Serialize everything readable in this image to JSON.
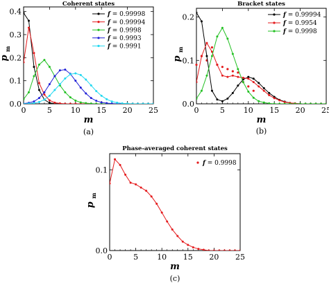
{
  "chart_data": [
    {
      "type": "line",
      "title": "Coherent states",
      "caption": "(a)",
      "xlabel": "m",
      "ylabel": "p",
      "ylabel_sub": "m",
      "xlim": [
        0,
        25
      ],
      "ylim": [
        0,
        0.42
      ],
      "xticks": [
        0,
        5,
        10,
        15,
        20,
        25
      ],
      "yticks": [
        0.0,
        0.1,
        0.2,
        0.3,
        0.4
      ],
      "legend_position": "top-right",
      "series": [
        {
          "name": "0.99998",
          "color": "#000000",
          "x": [
            0,
            1,
            2,
            3,
            4,
            5,
            6,
            7,
            8,
            9,
            10,
            11,
            12,
            13,
            14,
            15,
            16,
            17,
            18,
            19,
            20,
            21,
            22,
            23,
            24,
            25
          ],
          "values": [
            0.394,
            0.36,
            0.16,
            0.06,
            0.018,
            0.004,
            0.001,
            0,
            0,
            0,
            0,
            0,
            0,
            0,
            0,
            0,
            0,
            0,
            0,
            0,
            0,
            0,
            0,
            0,
            0,
            0
          ]
        },
        {
          "name": "0.99994",
          "color": "#e41a1c",
          "x": [
            0,
            1,
            2,
            3,
            4,
            5,
            6,
            7,
            8,
            9,
            10,
            11,
            12,
            13,
            14,
            15,
            16,
            17,
            18,
            19,
            20,
            21,
            22,
            23,
            24,
            25
          ],
          "values": [
            0.18,
            0.33,
            0.22,
            0.09,
            0.04,
            0.015,
            0.005,
            0.002,
            0,
            0,
            0,
            0,
            0,
            0,
            0,
            0,
            0,
            0,
            0,
            0,
            0,
            0,
            0,
            0,
            0,
            0
          ]
        },
        {
          "name": "0.9998",
          "color": "#22c022",
          "x": [
            0,
            1,
            2,
            3,
            4,
            5,
            6,
            7,
            8,
            9,
            10,
            11,
            12,
            13,
            14,
            15,
            16,
            17,
            18,
            19,
            20,
            21,
            22,
            23,
            24,
            25
          ],
          "values": [
            0.02,
            0.05,
            0.12,
            0.17,
            0.19,
            0.16,
            0.12,
            0.08,
            0.05,
            0.028,
            0.014,
            0.006,
            0.003,
            0.001,
            0,
            0,
            0,
            0,
            0,
            0,
            0,
            0,
            0,
            0,
            0,
            0
          ]
        },
        {
          "name": "0.9993",
          "color": "#1f1fd6",
          "x": [
            0,
            1,
            2,
            3,
            4,
            5,
            6,
            7,
            8,
            9,
            10,
            11,
            12,
            13,
            14,
            15,
            16,
            17,
            18,
            19,
            20,
            21,
            22,
            23,
            24,
            25
          ],
          "values": [
            0.001,
            0.004,
            0.01,
            0.025,
            0.05,
            0.085,
            0.12,
            0.145,
            0.148,
            0.13,
            0.1,
            0.07,
            0.045,
            0.025,
            0.013,
            0.006,
            0.003,
            0.001,
            0,
            0,
            0,
            0,
            0,
            0,
            0,
            0
          ]
        },
        {
          "name": "0.9991",
          "color": "#22d8f0",
          "x": [
            0,
            1,
            2,
            3,
            4,
            5,
            6,
            7,
            8,
            9,
            10,
            11,
            12,
            13,
            14,
            15,
            16,
            17,
            18,
            19,
            20,
            21,
            22,
            23,
            24,
            25
          ],
          "values": [
            0,
            0.001,
            0.003,
            0.008,
            0.018,
            0.035,
            0.06,
            0.085,
            0.11,
            0.128,
            0.132,
            0.125,
            0.105,
            0.08,
            0.055,
            0.035,
            0.02,
            0.01,
            0.005,
            0.002,
            0.001,
            0,
            0,
            0,
            0,
            0
          ]
        }
      ]
    },
    {
      "type": "line",
      "title": "Bracket states",
      "caption": "(b)",
      "xlabel": "m",
      "ylabel": "p",
      "ylabel_sub": "m",
      "xlim": [
        0,
        25
      ],
      "ylim": [
        0,
        0.22
      ],
      "xticks": [
        0,
        5,
        10,
        15,
        20,
        25
      ],
      "yticks": [
        0.0,
        0.1,
        0.2
      ],
      "legend_position": "top-right",
      "series": [
        {
          "name": "0.99994",
          "color": "#000000",
          "x": [
            0,
            1,
            2,
            3,
            4,
            5,
            6,
            7,
            8,
            9,
            10,
            11,
            12,
            13,
            14,
            15,
            16,
            17,
            18,
            19,
            20,
            21,
            22,
            23,
            24,
            25
          ],
          "values": [
            0.21,
            0.19,
            0.11,
            0.03,
            0.01,
            0.006,
            0.012,
            0.025,
            0.042,
            0.056,
            0.062,
            0.058,
            0.048,
            0.036,
            0.025,
            0.016,
            0.009,
            0.005,
            0.002,
            0.001,
            0,
            0,
            0,
            0,
            0,
            0
          ]
        },
        {
          "name": "0.9954",
          "color": "#e41a1c",
          "x": [
            0,
            1,
            2,
            3,
            4,
            5,
            6,
            7,
            8,
            9,
            10,
            11,
            12,
            13,
            14,
            15,
            16,
            17,
            18,
            19,
            20,
            21,
            22,
            23,
            24,
            25
          ],
          "values": [
            0.05,
            0.11,
            0.14,
            0.12,
            0.09,
            0.065,
            0.062,
            0.065,
            0.062,
            0.06,
            0.058,
            0.05,
            0.04,
            0.03,
            0.02,
            0.013,
            0.008,
            0.004,
            0.002,
            0.001,
            0,
            0,
            0,
            0,
            0,
            0
          ]
        },
        {
          "name": "0.9998",
          "color": "#22c022",
          "x": [
            0,
            1,
            2,
            3,
            4,
            5,
            6,
            7,
            8,
            9,
            10,
            11,
            12,
            13,
            14,
            15,
            16,
            17,
            18,
            19,
            20,
            21,
            22,
            23,
            24,
            25
          ],
          "values": [
            0.012,
            0.03,
            0.065,
            0.11,
            0.155,
            0.175,
            0.15,
            0.115,
            0.08,
            0.05,
            0.028,
            0.014,
            0.006,
            0.003,
            0.001,
            0,
            0,
            0,
            0,
            0,
            0,
            0,
            0,
            0,
            0,
            0
          ]
        }
      ],
      "extra_points": {
        "color": "#e41a1c",
        "x": [
          0,
          1,
          2,
          3,
          4,
          5,
          6,
          7,
          8,
          9,
          10,
          11
        ],
        "values": [
          0.09,
          0.11,
          0.1,
          0.13,
          0.09,
          0.085,
          0.08,
          0.075,
          0.072,
          0.05,
          0.04,
          0.03
        ]
      }
    },
    {
      "type": "line",
      "title": "Phase-averaged coherent states",
      "caption": "(c)",
      "xlabel": "m",
      "ylabel": "p",
      "ylabel_sub": "m",
      "xlim": [
        0,
        25
      ],
      "ylim": [
        0,
        0.12
      ],
      "xticks": [
        0,
        5,
        10,
        15,
        20,
        25
      ],
      "yticks": [
        0.0,
        0.1
      ],
      "legend_position": "top-right",
      "series": [
        {
          "name": "0.9998",
          "color": "#e41a1c",
          "x": [
            0,
            1,
            2,
            3,
            4,
            5,
            6,
            7,
            8,
            9,
            10,
            11,
            12,
            13,
            14,
            15,
            16,
            17,
            18,
            19,
            20,
            21,
            22,
            23,
            24,
            25
          ],
          "values": [
            0.083,
            0.113,
            0.106,
            0.094,
            0.084,
            0.082,
            0.078,
            0.074,
            0.067,
            0.058,
            0.047,
            0.036,
            0.026,
            0.018,
            0.011,
            0.007,
            0.004,
            0.002,
            0.001,
            0,
            0,
            0,
            0,
            0,
            0,
            0
          ]
        }
      ]
    }
  ],
  "legend_prefix": "f",
  "legend_eq": " = "
}
